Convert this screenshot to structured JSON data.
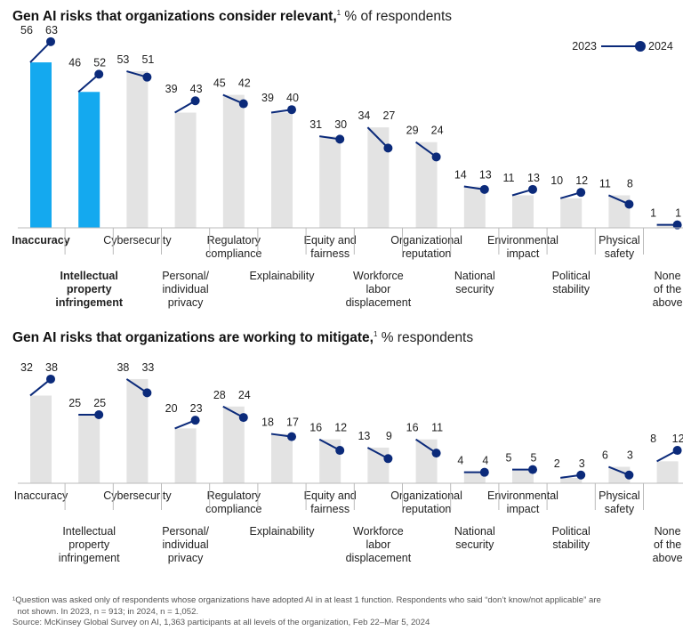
{
  "chart_data": [
    {
      "type": "bar",
      "title": "Gen AI risks that organizations consider relevant,",
      "title_note": "1",
      "subtitle": "% of respondents",
      "legend": {
        "labels": [
          "2023",
          "2024"
        ],
        "placement": "top-right"
      },
      "categories": [
        "Inaccuracy",
        "Intellectual property infringement",
        "Cybersecurity",
        "Personal/ individual privacy",
        "Regulatory compliance",
        "Explainability",
        "Equity and fairness",
        "Workforce labor displacement",
        "Organizational reputation",
        "National security",
        "Environmental impact",
        "Political stability",
        "Physical safety",
        "None of the above"
      ],
      "category_lines": [
        [
          "Inaccuracy"
        ],
        [
          "Intellectual",
          "property",
          "infringement"
        ],
        [
          "Cybersecurity"
        ],
        [
          "Personal/",
          "individual",
          "privacy"
        ],
        [
          "Regulatory",
          "compliance"
        ],
        [
          "Explainability"
        ],
        [
          "Equity and",
          "fairness"
        ],
        [
          "Workforce",
          "labor",
          "displacement"
        ],
        [
          "Organizational",
          "reputation"
        ],
        [
          "National",
          "security"
        ],
        [
          "Environmental",
          "impact"
        ],
        [
          "Political",
          "stability"
        ],
        [
          "Physical",
          "safety"
        ],
        [
          "None",
          "of the",
          "above"
        ]
      ],
      "highlight": [
        0,
        1
      ],
      "series": [
        {
          "name": "2023",
          "values": [
            56,
            46,
            53,
            39,
            45,
            39,
            31,
            34,
            29,
            14,
            11,
            10,
            11,
            1
          ]
        },
        {
          "name": "2024",
          "values": [
            63,
            52,
            51,
            43,
            42,
            40,
            30,
            27,
            24,
            13,
            13,
            12,
            8,
            1
          ]
        }
      ],
      "ylim": [
        0,
        65
      ],
      "grid": false
    },
    {
      "type": "bar",
      "title": "Gen AI risks that organizations are working to mitigate,",
      "title_note": "1",
      "subtitle": "% respondents",
      "categories": [
        "Inaccuracy",
        "Intellectual property infringement",
        "Cybersecurity",
        "Personal/ individual privacy",
        "Regulatory compliance",
        "Explainability",
        "Equity and fairness",
        "Workforce labor displacement",
        "Organizational reputation",
        "National security",
        "Environmental impact",
        "Political stability",
        "Physical safety",
        "None of the above"
      ],
      "category_lines": [
        [
          "Inaccuracy"
        ],
        [
          "Intellectual",
          "property",
          "infringement"
        ],
        [
          "Cybersecurity"
        ],
        [
          "Personal/",
          "individual",
          "privacy"
        ],
        [
          "Regulatory",
          "compliance"
        ],
        [
          "Explainability"
        ],
        [
          "Equity and",
          "fairness"
        ],
        [
          "Workforce",
          "labor",
          "displacement"
        ],
        [
          "Organizational",
          "reputation"
        ],
        [
          "National",
          "security"
        ],
        [
          "Environmental",
          "impact"
        ],
        [
          "Political",
          "stability"
        ],
        [
          "Physical",
          "safety"
        ],
        [
          "None",
          "of the",
          "above"
        ]
      ],
      "highlight": [],
      "series": [
        {
          "name": "2023",
          "values": [
            32,
            25,
            38,
            20,
            28,
            18,
            16,
            13,
            16,
            4,
            5,
            2,
            6,
            8
          ]
        },
        {
          "name": "2024",
          "values": [
            38,
            25,
            33,
            23,
            24,
            17,
            12,
            9,
            11,
            4,
            5,
            3,
            3,
            12
          ]
        }
      ],
      "ylim": [
        0,
        40
      ],
      "grid": false
    }
  ],
  "footnotes": [
    "¹Question was asked only of respondents whose organizations have adopted AI in at least 1 function. Respondents who said “don’t know/not applicable” are",
    "  not shown. In 2023, n = 913; in 2024, n = 1,052.",
    "Source: McKinsey Global Survey on AI, 1,363 participants at all levels of the organization, Feb 22–Mar 5, 2024"
  ],
  "colors": {
    "bar": "#e3e3e3",
    "bar_highlight": "#14a9ef",
    "line": "#0b2a7a",
    "axis": "#bbbbbb",
    "text": "#222222"
  }
}
